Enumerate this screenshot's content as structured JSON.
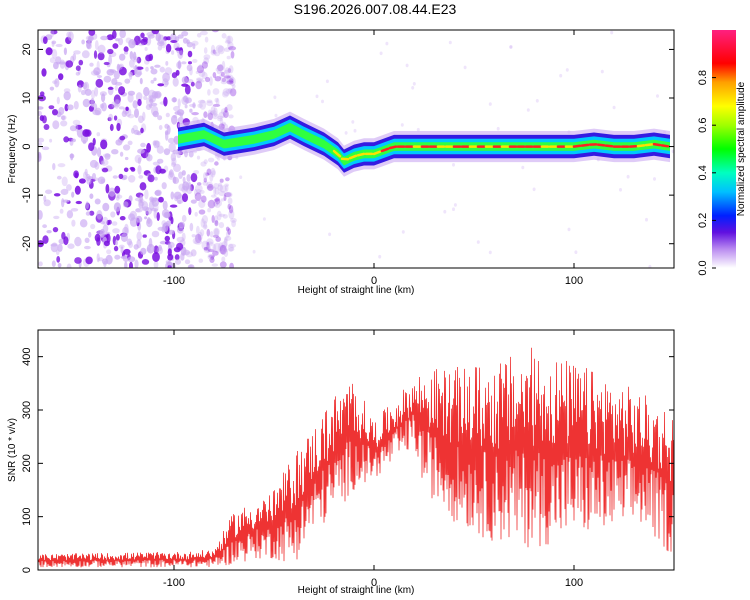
{
  "title": "S196.2026.007.08.44.E23",
  "colors": {
    "line": "#ee3333",
    "axis": "#000000",
    "scatter_low": "#c9a8f2",
    "scatter_high": "#7a10e0"
  },
  "chart_data": [
    {
      "type": "heatmap",
      "name": "spectrogram",
      "xlabel": "Height of straight line (km)",
      "ylabel": "Frequency (Hz)",
      "xlim": [
        -168,
        150
      ],
      "ylim": [
        -25,
        24
      ],
      "xticks": [
        -100,
        0,
        100
      ],
      "xtick_labels": [
        "-100",
        "0",
        "100"
      ],
      "yticks": [
        20,
        10,
        0,
        -10,
        -20
      ],
      "ytick_labels": [
        "20",
        "10",
        "0",
        "-10",
        "-20"
      ],
      "noise_region_x": [
        -168,
        -80
      ],
      "ridge": {
        "x": [
          -98,
          -85,
          -75,
          -60,
          -50,
          -42,
          -35,
          -25,
          -18,
          -15,
          -10,
          -5,
          0,
          10,
          20,
          30,
          40,
          50,
          60,
          70,
          80,
          90,
          100,
          110,
          120,
          130,
          140,
          148
        ],
        "y": [
          1.5,
          2.5,
          0.5,
          1.5,
          2.5,
          4.0,
          2.5,
          0.5,
          -1.5,
          -3.0,
          -2.0,
          -1.5,
          -1.5,
          0,
          0,
          0,
          0,
          0,
          0,
          0,
          0,
          0,
          0,
          0.5,
          0,
          0,
          0.5,
          0
        ]
      },
      "colorbar": {
        "label": "Normalized spectral amplitude",
        "range": [
          0,
          1
        ],
        "ticks": [
          0.0,
          0.2,
          0.4,
          0.6,
          0.8
        ],
        "tick_labels": [
          "0.0",
          "0.2",
          "0.4",
          "0.6",
          "0.8"
        ]
      }
    },
    {
      "type": "line",
      "name": "snr",
      "xlabel": "Height of straight line (km)",
      "ylabel": "SNR (10 * v/v)",
      "xlim": [
        -168,
        150
      ],
      "ylim": [
        0,
        450
      ],
      "xticks": [
        -100,
        0,
        100
      ],
      "xtick_labels": [
        "-100",
        "0",
        "100"
      ],
      "yticks": [
        0,
        100,
        200,
        300,
        400
      ],
      "ytick_labels": [
        "0",
        "100",
        "200",
        "300",
        "400"
      ],
      "envelope": {
        "x": [
          -168,
          -90,
          -80,
          -70,
          -60,
          -50,
          -40,
          -30,
          -20,
          -10,
          0,
          10,
          20,
          25,
          40,
          60,
          80,
          100,
          120,
          135,
          150
        ],
        "low": [
          5,
          5,
          5,
          10,
          20,
          20,
          10,
          70,
          100,
          150,
          170,
          200,
          230,
          150,
          90,
          50,
          40,
          60,
          70,
          80,
          20
        ],
        "high": [
          30,
          35,
          40,
          110,
          130,
          150,
          220,
          270,
          330,
          360,
          280,
          320,
          360,
          380,
          380,
          390,
          420,
          390,
          360,
          330,
          300
        ]
      }
    }
  ]
}
